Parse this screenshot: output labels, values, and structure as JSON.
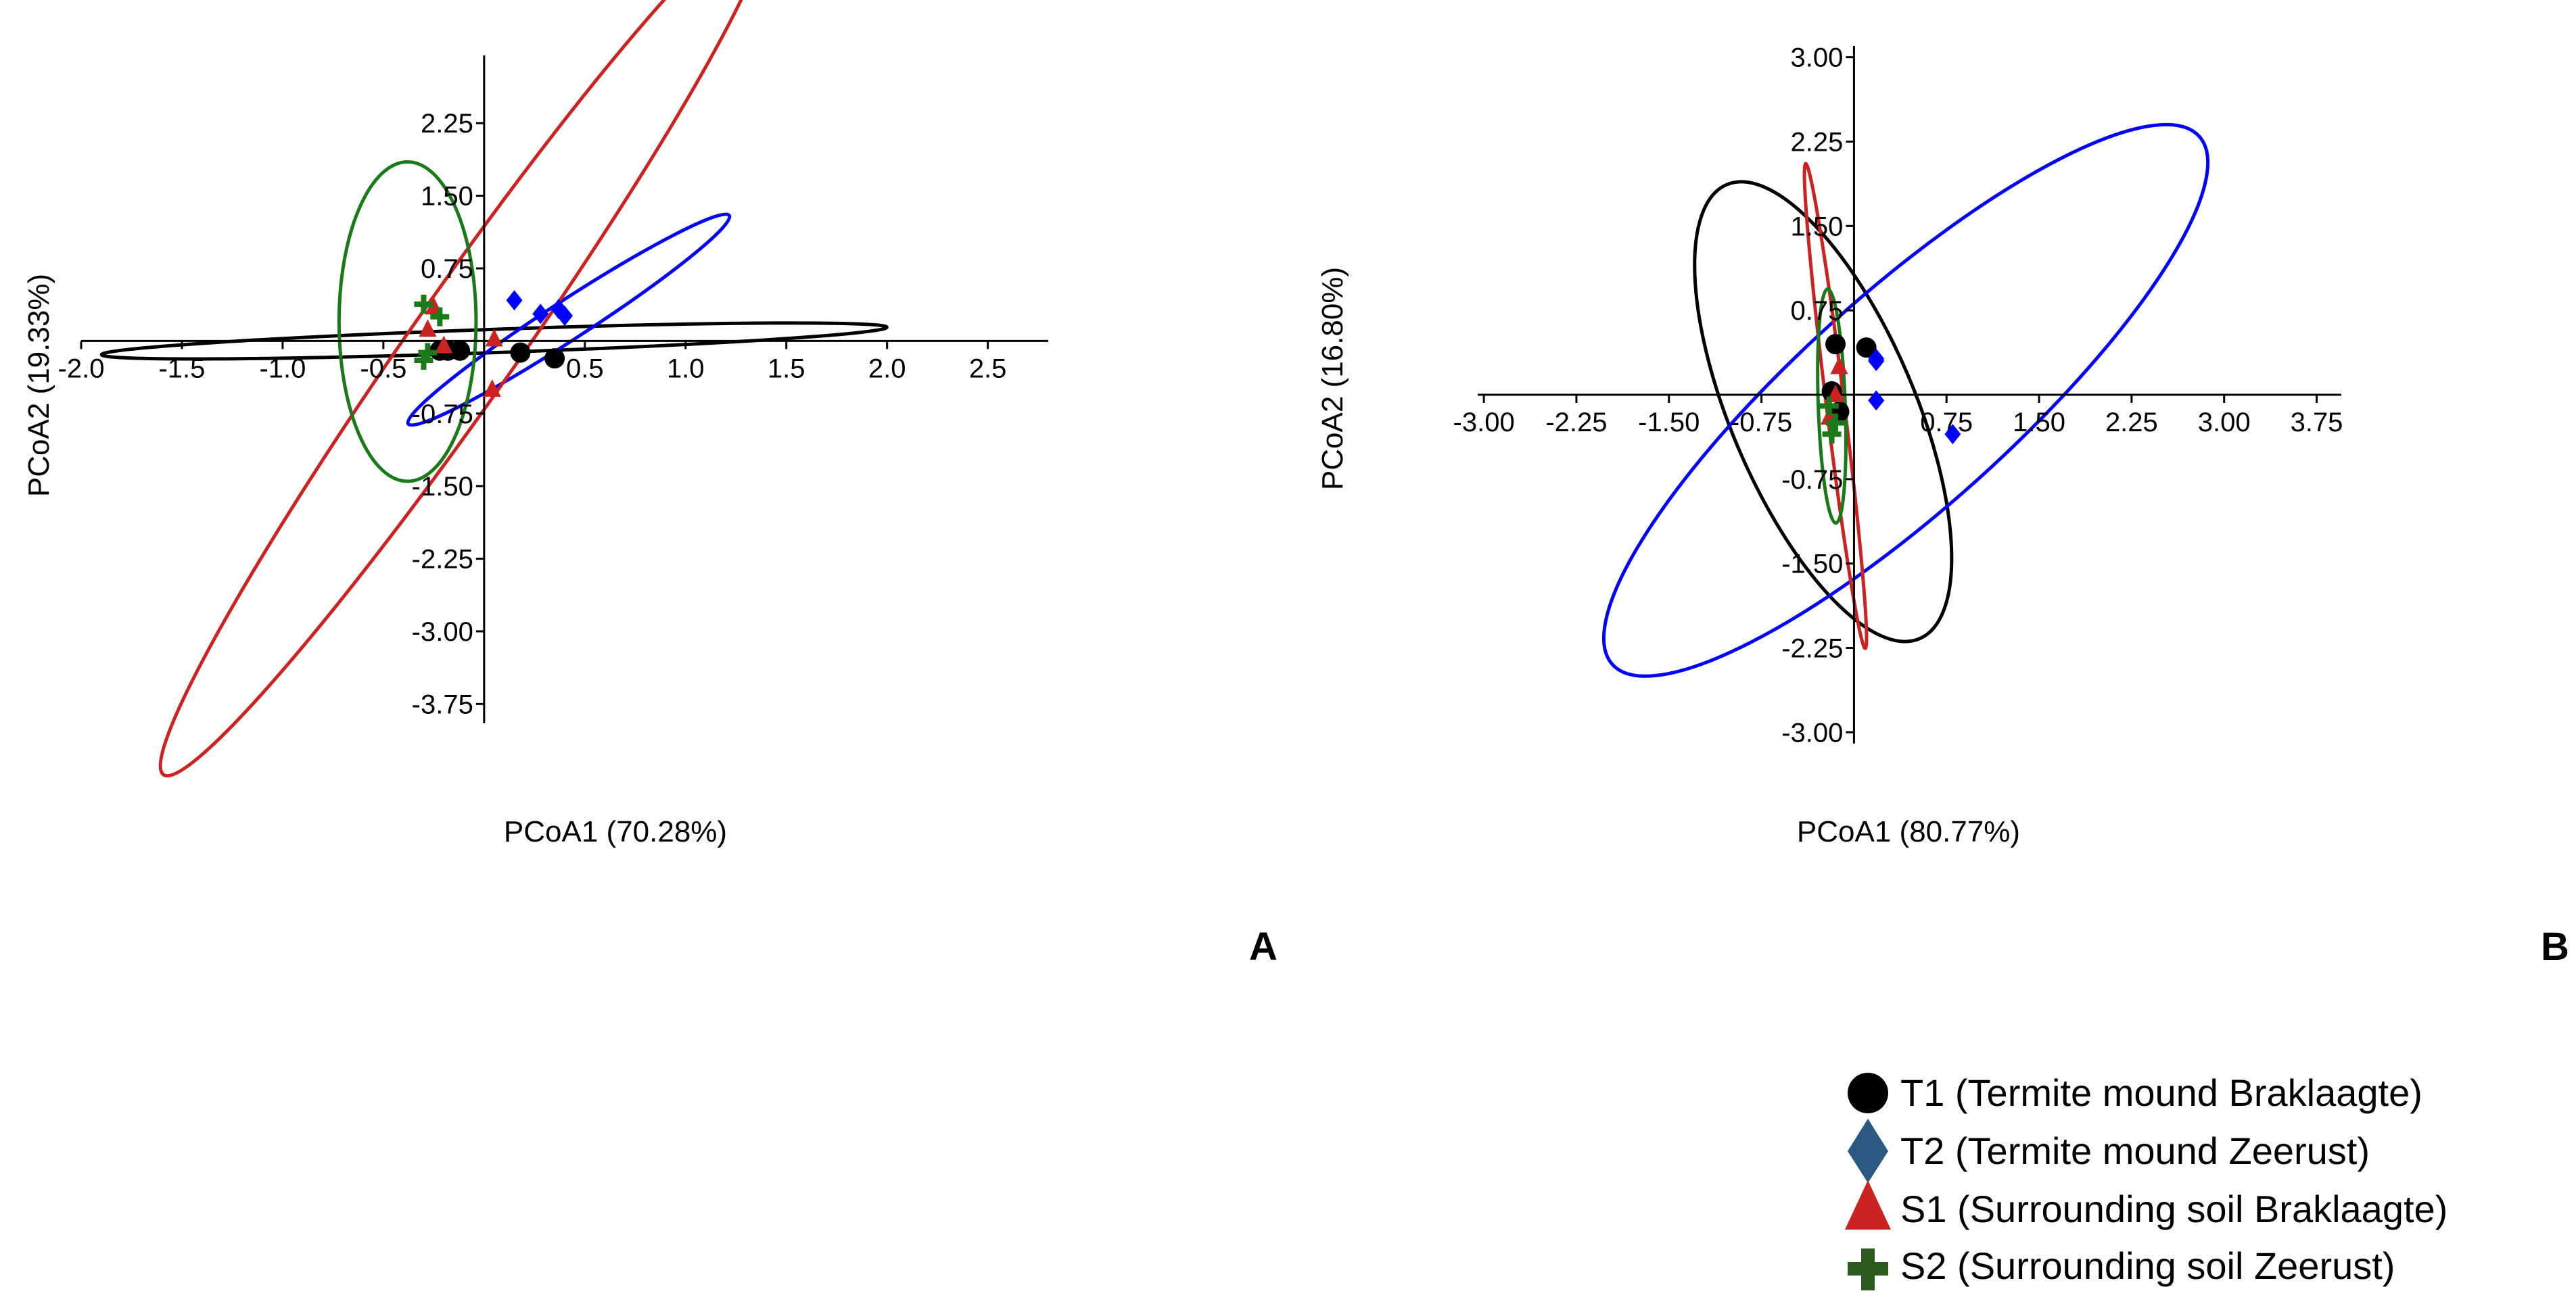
{
  "chart_data": [
    {
      "type": "scatter",
      "panel_label": "A",
      "xlabel": "PCoA1 (70.28%)",
      "ylabel": "PCoA2 (19.33%)",
      "xlim": [
        -2.0,
        2.8
      ],
      "ylim": [
        -3.95,
        2.95
      ],
      "x_ticks": [
        -2.0,
        -1.5,
        -1.0,
        -0.5,
        0.0,
        0.5,
        1.0,
        1.5,
        2.0,
        2.5
      ],
      "x_tick_labels": [
        "-2.0",
        "-1.5",
        "-1.0",
        "-0.5",
        "",
        "0.5",
        "1.0",
        "1.5",
        "2.0",
        "2.5"
      ],
      "y_ticks": [
        2.25,
        1.5,
        0.75,
        -0.75,
        -1.5,
        -2.25,
        -3.0,
        -3.75
      ],
      "y_tick_labels": [
        "2.25",
        "1.50",
        "0.75",
        "-0.75",
        "-1.50",
        "-2.25",
        "-3.00",
        "-3.75"
      ],
      "series": [
        {
          "name": "T1",
          "color": "#000000",
          "marker": "circle",
          "points": [
            [
              -0.22,
              -0.1
            ],
            [
              -0.18,
              -0.1
            ],
            [
              -0.12,
              -0.1
            ],
            [
              0.18,
              -0.12
            ],
            [
              0.35,
              -0.18
            ]
          ],
          "ellipse": {
            "cx": 0.05,
            "cy": 0.0,
            "rx": 1.95,
            "ry": 0.12,
            "angle_deg": -2
          }
        },
        {
          "name": "T2",
          "color": "#0000ff",
          "marker": "diamond",
          "points": [
            [
              0.15,
              0.42
            ],
            [
              0.28,
              0.28
            ],
            [
              0.37,
              0.33
            ],
            [
              0.4,
              0.26
            ]
          ],
          "ellipse": {
            "cx": 0.42,
            "cy": 0.22,
            "rx": 0.95,
            "ry": 0.2,
            "angle_deg": -33
          }
        },
        {
          "name": "S1",
          "color": "#cc2222",
          "marker": "triangle",
          "points": [
            [
              -0.25,
              0.35
            ],
            [
              -0.28,
              0.12
            ],
            [
              0.05,
              0.02
            ],
            [
              -0.2,
              -0.05
            ],
            [
              0.04,
              -0.5
            ]
          ],
          "ellipse": {
            "cx": -0.1,
            "cy": -0.05,
            "rx": 2.6,
            "ry": 0.55,
            "angle_deg": -55
          }
        },
        {
          "name": "S2",
          "color": "#1a7a1a",
          "marker": "plus",
          "points": [
            [
              -0.3,
              0.38
            ],
            [
              -0.22,
              0.25
            ],
            [
              -0.28,
              -0.12
            ],
            [
              -0.3,
              -0.2
            ]
          ],
          "ellipse": {
            "cx": -0.38,
            "cy": 0.2,
            "rx": 0.34,
            "ry": 1.65,
            "angle_deg": 0
          }
        }
      ]
    },
    {
      "type": "scatter",
      "panel_label": "B",
      "xlabel": "PCoA1 (80.77%)",
      "ylabel": "PCoA2 (16.80%)",
      "xlim": [
        -3.05,
        3.95
      ],
      "ylim": [
        -3.1,
        3.1
      ],
      "x_ticks": [
        -3.0,
        -2.25,
        -1.5,
        -0.75,
        0.0,
        0.75,
        1.5,
        2.25,
        3.0,
        3.75
      ],
      "x_tick_labels": [
        "-3.00",
        "-2.25",
        "-1.50",
        "-0.75",
        "",
        "0.75",
        "1.50",
        "2.25",
        "3.00",
        "3.75"
      ],
      "y_ticks": [
        3.0,
        2.25,
        1.5,
        0.75,
        -0.75,
        -1.5,
        -2.25,
        -3.0
      ],
      "y_tick_labels": [
        "3.00",
        "2.25",
        "1.50",
        "0.75",
        "-0.75",
        "-1.50",
        "-2.25",
        "-3.00"
      ],
      "series": [
        {
          "name": "T1",
          "color": "#000000",
          "marker": "circle",
          "points": [
            [
              -0.15,
              0.45
            ],
            [
              0.1,
              0.42
            ],
            [
              -0.18,
              0.03
            ],
            [
              -0.12,
              -0.15
            ]
          ],
          "ellipse": {
            "cx": -0.25,
            "cy": -0.15,
            "rx": 2.0,
            "ry": 0.82,
            "angle_deg": 67
          }
        },
        {
          "name": "T2",
          "color": "#0000ff",
          "marker": "diamond",
          "points": [
            [
              0.18,
              0.32
            ],
            [
              0.18,
              0.3
            ],
            [
              0.18,
              -0.05
            ],
            [
              0.8,
              -0.35
            ]
          ],
          "ellipse": {
            "cx": 0.42,
            "cy": -0.05,
            "rx": 3.2,
            "ry": 0.95,
            "angle_deg": -42
          }
        },
        {
          "name": "S1",
          "color": "#cc2222",
          "marker": "triangle",
          "points": [
            [
              -0.12,
              0.25
            ],
            [
              -0.15,
              0.0
            ],
            [
              -0.2,
              -0.2
            ]
          ],
          "ellipse": {
            "cx": -0.15,
            "cy": -0.1,
            "rx": 1.98,
            "ry": 0.08,
            "angle_deg": 83
          }
        },
        {
          "name": "S2",
          "color": "#1a7a1a",
          "marker": "plus",
          "points": [
            [
              -0.2,
              -0.1
            ],
            [
              -0.15,
              -0.25
            ],
            [
              -0.18,
              -0.35
            ]
          ],
          "ellipse": {
            "cx": -0.18,
            "cy": -0.1,
            "rx": 0.95,
            "ry": 0.12,
            "angle_deg": 88
          }
        }
      ]
    }
  ],
  "legend": {
    "items": [
      {
        "label": "T1 (Termite mound Braklaagte)",
        "marker": "circle",
        "color": "#000000"
      },
      {
        "label": "T2 (Termite mound Zeerust)",
        "marker": "diamond",
        "color": "#2a5a82"
      },
      {
        "label": "S1 (Surrounding soil Braklaagte)",
        "marker": "triangle",
        "color": "#cc2222"
      },
      {
        "label": "S2 (Surrounding soil Zeerust)",
        "marker": "plus",
        "color": "#2d5a1f"
      }
    ]
  }
}
